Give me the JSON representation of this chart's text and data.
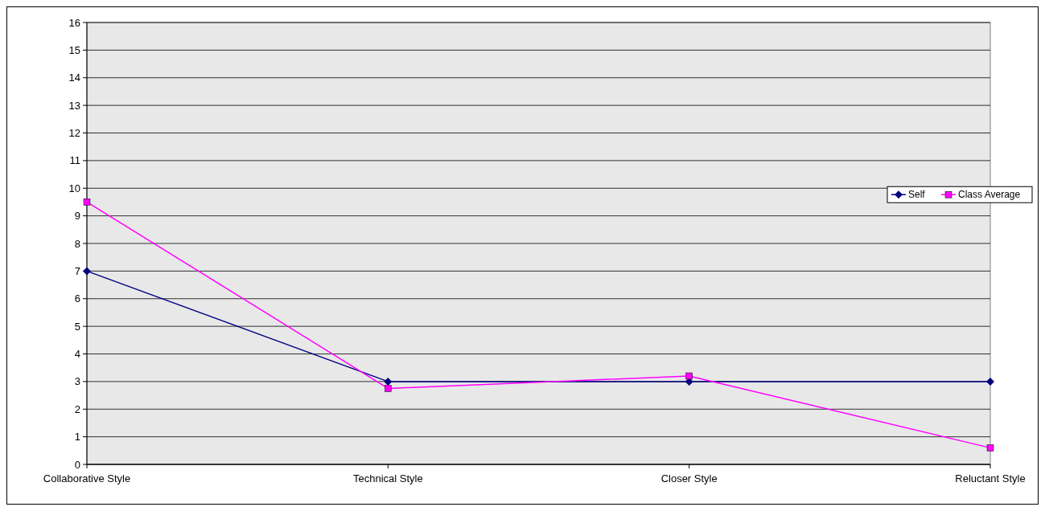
{
  "chart_data": {
    "type": "line",
    "categories": [
      "Collaborative Style",
      "Technical Style",
      "Closer Style",
      "Reluctant Style"
    ],
    "series": [
      {
        "name": "Self",
        "color": "#000080",
        "values": [
          7,
          3,
          3,
          3
        ],
        "marker": "diamond"
      },
      {
        "name": "Class Average",
        "color": "#ff00ff",
        "values": [
          9.5,
          2.75,
          3.2,
          0.6
        ],
        "marker": "square"
      }
    ],
    "ylim": [
      0,
      16
    ],
    "yticks": [
      0,
      1,
      2,
      3,
      4,
      5,
      6,
      7,
      8,
      9,
      10,
      11,
      12,
      13,
      14,
      15,
      16
    ],
    "grid": "y",
    "legend": "right"
  }
}
